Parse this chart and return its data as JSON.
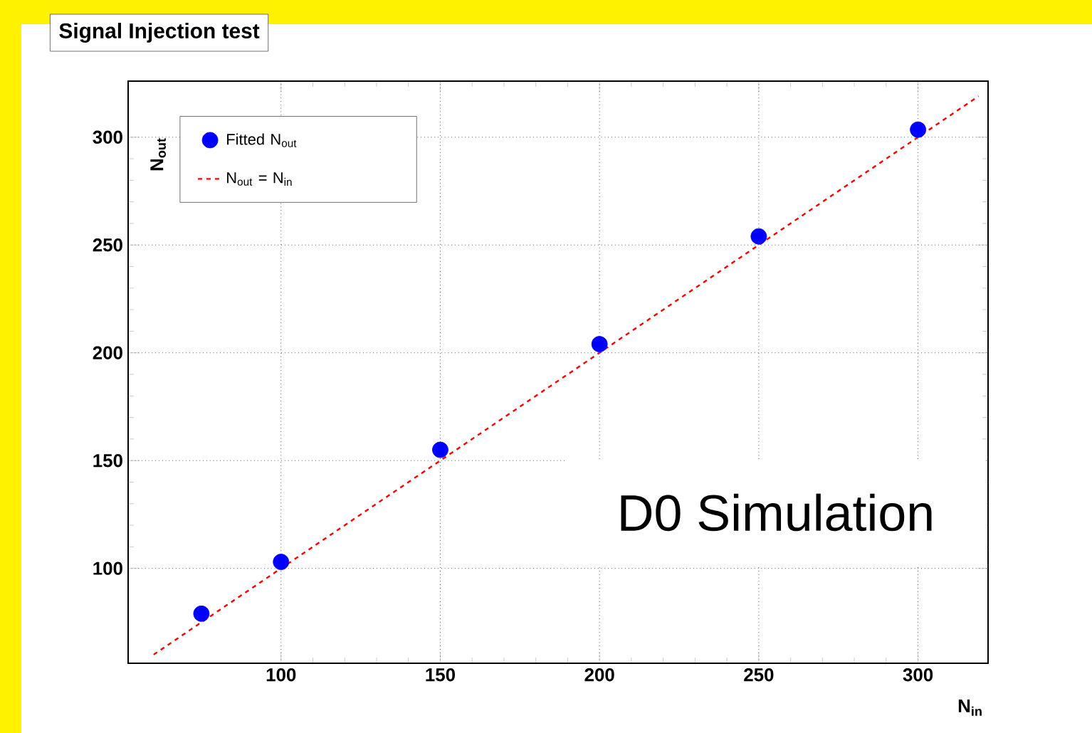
{
  "chart_data": {
    "type": "scatter",
    "title": "Signal Injection test",
    "xlabel": "N$_{in}$",
    "ylabel": "N$_{out}$",
    "annotations": [
      "D0 Simulation"
    ],
    "x": [
      75,
      100,
      150,
      200,
      250,
      300
    ],
    "series": [
      {
        "name": "Fitted N$_{out}$",
        "color": "#0000ff",
        "marker": "circle",
        "values": [
          79,
          103,
          155,
          204,
          254,
          303.5
        ]
      },
      {
        "name": "N$_{out}$ = N$_{in}$",
        "type": "line",
        "color": "#ff0000",
        "line_style": "dashed",
        "marker": "none",
        "x": [
          60,
          319
        ],
        "values": [
          60,
          319
        ]
      }
    ],
    "xlim": [
      52,
      322
    ],
    "ylim": [
      56,
      326
    ],
    "xticks": [
      100,
      150,
      200,
      250,
      300
    ],
    "yticks": [
      100,
      150,
      200,
      250,
      300
    ],
    "grid": true,
    "legend": "top left"
  }
}
